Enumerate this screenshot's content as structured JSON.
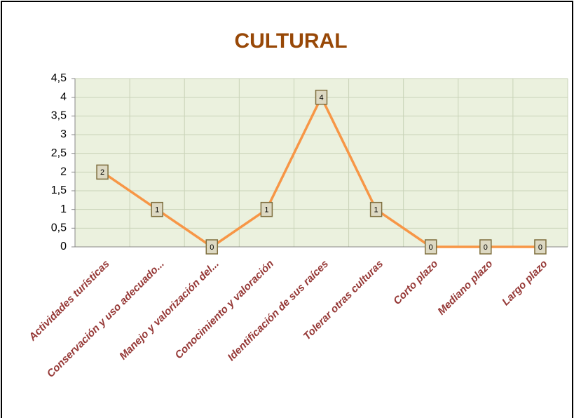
{
  "chart_data": {
    "type": "line",
    "title": "CULTURAL",
    "categories": [
      "Actividades turísticas",
      "Conservación y uso adecuado...",
      "Manejo y valorización del...",
      "Conocimiento y valoración",
      "Identificación de sus raíces",
      "Tolerar otras culturas",
      "Corto plazo",
      "Mediano plazo",
      "Largo plazo"
    ],
    "values": [
      2,
      1,
      0,
      1,
      4,
      1,
      0,
      0,
      0
    ],
    "color": "#f79646",
    "ylim": [
      0,
      4.5
    ],
    "yticks": [
      0,
      {
        "value": 0.5,
        "label": "0,5"
      },
      1,
      {
        "value": 1.5,
        "label": "1,5"
      },
      2,
      {
        "value": 2.5,
        "label": "2,5"
      },
      3,
      {
        "value": 3.5,
        "label": "3,5"
      },
      4,
      {
        "value": 4.5,
        "label": "4,5"
      }
    ],
    "grid": true
  }
}
